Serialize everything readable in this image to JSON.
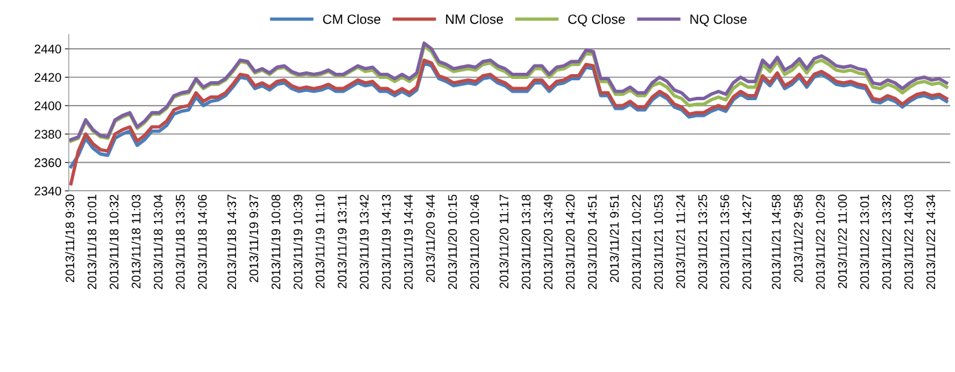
{
  "chart_data": {
    "type": "line",
    "categories": [
      "2013/11/18 9:30",
      null,
      null,
      "2013/11/18 10:01",
      null,
      null,
      "2013/11/18 10:32",
      null,
      null,
      "2013/11/18 11:03",
      null,
      null,
      "2013/11/18 13:04",
      null,
      null,
      "2013/11/18 13:35",
      null,
      null,
      "2013/11/18 14:06",
      null,
      null,
      null,
      "2013/11/18 14:37",
      null,
      null,
      "2013/11/19 9:37",
      null,
      null,
      "2013/11/19 10:08",
      null,
      null,
      "2013/11/19 10:39",
      null,
      null,
      "2013/11/19 11:10",
      null,
      null,
      "2013/11/19 13:11",
      null,
      null,
      "2013/11/19 13:42",
      null,
      null,
      "2013/11/19 14:13",
      null,
      null,
      "2013/11/19 14:44",
      null,
      null,
      "2013/11/20 9:44",
      null,
      null,
      "2013/11/20 10:15",
      null,
      null,
      "2013/11/20 10:46",
      null,
      null,
      null,
      "2013/11/20 11:17",
      null,
      null,
      "2013/11/20 13:18",
      null,
      null,
      "2013/11/20 13:49",
      null,
      null,
      "2013/11/20 14:20",
      null,
      null,
      "2013/11/20 14:51",
      null,
      null,
      "2013/11/21 9:51",
      null,
      null,
      "2013/11/21 10:22",
      null,
      null,
      "2013/11/21 10:53",
      null,
      null,
      "2013/11/21 11:24",
      null,
      null,
      "2013/11/21 13:25",
      null,
      null,
      "2013/11/21 13:56",
      null,
      null,
      "2013/11/21 14:27",
      null,
      null,
      null,
      "2013/11/21 14:58",
      null,
      null,
      "2013/11/22 9:58",
      null,
      null,
      "2013/11/22 10:29",
      null,
      null,
      "2013/11/22 11:00",
      null,
      null,
      "2013/11/22 13:01",
      null,
      null,
      "2013/11/22 13:32",
      null,
      null,
      "2013/11/22 14:03",
      null,
      null,
      "2013/11/22 14:34",
      null,
      null
    ],
    "series": [
      {
        "name": "CM Close",
        "color": "#4a7ebb",
        "values": [
          2357,
          2365,
          2377,
          2370,
          2366,
          2365,
          2377,
          2380,
          2382,
          2372,
          2376,
          2382,
          2382,
          2386,
          2394,
          2396,
          2397,
          2406,
          2400,
          2403,
          2404,
          2407,
          2413,
          2420,
          2419,
          2412,
          2414,
          2411,
          2415,
          2416,
          2412,
          2410,
          2411,
          2410,
          2411,
          2413,
          2410,
          2410,
          2413,
          2416,
          2414,
          2415,
          2410,
          2410,
          2407,
          2410,
          2407,
          2411,
          2430,
          2428,
          2419,
          2417,
          2414,
          2415,
          2416,
          2415,
          2419,
          2420,
          2416,
          2414,
          2410,
          2410,
          2410,
          2416,
          2416,
          2410,
          2415,
          2416,
          2419,
          2419,
          2427,
          2426,
          2407,
          2407,
          2398,
          2398,
          2401,
          2397,
          2397,
          2404,
          2408,
          2405,
          2399,
          2397,
          2392,
          2393,
          2393,
          2396,
          2398,
          2396,
          2404,
          2408,
          2405,
          2405,
          2419,
          2414,
          2421,
          2412,
          2415,
          2420,
          2413,
          2420,
          2422,
          2419,
          2415,
          2414,
          2415,
          2413,
          2412,
          2403,
          2402,
          2405,
          2403,
          2399,
          2403,
          2406,
          2407,
          2405,
          2406,
          2403
        ]
      },
      {
        "name": "NM Close",
        "color": "#be4b48",
        "values": [
          2345,
          2368,
          2380,
          2373,
          2369,
          2368,
          2380,
          2383,
          2385,
          2375,
          2379,
          2385,
          2385,
          2389,
          2397,
          2399,
          2400,
          2409,
          2403,
          2406,
          2406,
          2409,
          2415,
          2422,
          2421,
          2414,
          2416,
          2413,
          2417,
          2418,
          2414,
          2412,
          2413,
          2412,
          2413,
          2415,
          2412,
          2412,
          2415,
          2418,
          2416,
          2417,
          2412,
          2412,
          2409,
          2412,
          2409,
          2413,
          2432,
          2430,
          2421,
          2419,
          2416,
          2417,
          2418,
          2417,
          2421,
          2422,
          2418,
          2416,
          2412,
          2412,
          2412,
          2418,
          2418,
          2412,
          2417,
          2418,
          2421,
          2421,
          2429,
          2428,
          2409,
          2409,
          2400,
          2400,
          2403,
          2399,
          2399,
          2406,
          2410,
          2407,
          2401,
          2399,
          2394,
          2395,
          2395,
          2398,
          2400,
          2398,
          2406,
          2410,
          2407,
          2407,
          2421,
          2416,
          2423,
          2414,
          2417,
          2422,
          2415,
          2422,
          2424,
          2421,
          2417,
          2416,
          2417,
          2415,
          2414,
          2405,
          2404,
          2407,
          2405,
          2401,
          2405,
          2408,
          2409,
          2407,
          2408,
          2405
        ]
      },
      {
        "name": "CQ Close",
        "color": "#98b954",
        "values": [
          2375,
          2377,
          2389,
          2382,
          2378,
          2377,
          2389,
          2392,
          2394,
          2384,
          2388,
          2394,
          2394,
          2398,
          2406,
          2408,
          2409,
          2418,
          2412,
          2415,
          2415,
          2418,
          2424,
          2431,
          2430,
          2423,
          2425,
          2422,
          2426,
          2427,
          2423,
          2421,
          2422,
          2421,
          2422,
          2424,
          2421,
          2421,
          2424,
          2427,
          2424,
          2425,
          2420,
          2420,
          2417,
          2420,
          2417,
          2421,
          2442,
          2438,
          2429,
          2427,
          2424,
          2425,
          2426,
          2425,
          2429,
          2430,
          2426,
          2424,
          2420,
          2420,
          2420,
          2426,
          2426,
          2420,
          2425,
          2426,
          2429,
          2429,
          2437,
          2436,
          2417,
          2417,
          2408,
          2408,
          2411,
          2407,
          2407,
          2414,
          2416,
          2413,
          2407,
          2405,
          2400,
          2401,
          2401,
          2404,
          2406,
          2404,
          2412,
          2416,
          2413,
          2413,
          2429,
          2424,
          2431,
          2422,
          2425,
          2430,
          2423,
          2430,
          2432,
          2429,
          2425,
          2424,
          2425,
          2423,
          2422,
          2413,
          2412,
          2415,
          2413,
          2409,
          2413,
          2416,
          2417,
          2415,
          2416,
          2413
        ]
      },
      {
        "name": "NQ Close",
        "color": "#7d60a0",
        "values": [
          2376,
          2378,
          2390,
          2383,
          2379,
          2378,
          2390,
          2393,
          2395,
          2385,
          2389,
          2395,
          2395,
          2399,
          2407,
          2409,
          2410,
          2419,
          2413,
          2416,
          2416,
          2419,
          2425,
          2432,
          2431,
          2424,
          2426,
          2423,
          2427,
          2428,
          2424,
          2422,
          2423,
          2422,
          2423,
          2425,
          2422,
          2422,
          2425,
          2428,
          2426,
          2427,
          2422,
          2422,
          2419,
          2422,
          2419,
          2423,
          2444,
          2440,
          2431,
          2429,
          2426,
          2427,
          2428,
          2427,
          2431,
          2432,
          2428,
          2426,
          2422,
          2422,
          2422,
          2428,
          2428,
          2422,
          2427,
          2428,
          2431,
          2431,
          2439,
          2438,
          2419,
          2419,
          2410,
          2410,
          2413,
          2409,
          2409,
          2416,
          2420,
          2417,
          2411,
          2409,
          2404,
          2405,
          2405,
          2408,
          2410,
          2408,
          2416,
          2420,
          2417,
          2417,
          2432,
          2427,
          2434,
          2425,
          2428,
          2433,
          2426,
          2433,
          2435,
          2432,
          2428,
          2427,
          2428,
          2426,
          2425,
          2416,
          2415,
          2418,
          2416,
          2412,
          2416,
          2419,
          2420,
          2418,
          2419,
          2416
        ]
      }
    ],
    "ylim": [
      2340,
      2450
    ],
    "yticks": [
      2340,
      2360,
      2380,
      2400,
      2420,
      2440
    ],
    "grid": "y",
    "legend": "top",
    "marker": "none",
    "line_style": "solid"
  }
}
